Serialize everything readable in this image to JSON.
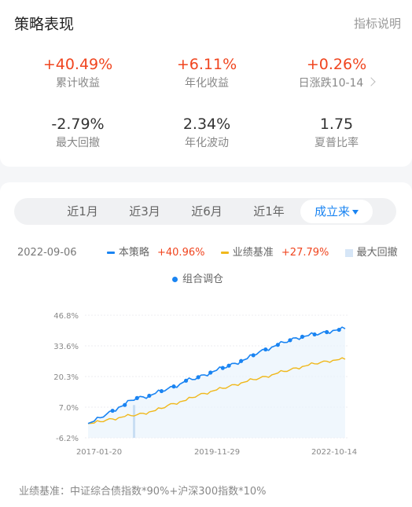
{
  "header": {
    "title": "策略表现",
    "help_link": "指标说明"
  },
  "metrics": [
    {
      "value": "+40.49%",
      "label": "累计收益"
    },
    {
      "value": "+6.11%",
      "label": "年化收益"
    },
    {
      "value": "+0.26%",
      "label": "日涨跌10-14"
    },
    {
      "value": "-2.79%",
      "label": "最大回撤"
    },
    {
      "value": "2.34%",
      "label": "年化波动"
    },
    {
      "value": "1.75",
      "label": "夏普比率"
    }
  ],
  "tabs": [
    "近1月",
    "近3月",
    "近6月",
    "近1年",
    "成立来"
  ],
  "active_tab": "成立来",
  "legend": {
    "date": "2022-09-06",
    "strategy_label": "本策略",
    "strategy_value": "+40.96%",
    "benchmark_label": "业绩基准",
    "benchmark_value": "+27.79%",
    "drawdown_label": "最大回撤",
    "rebalance_label": "组合调仓"
  },
  "colors": {
    "strategy": "#1a84f2",
    "benchmark": "#f0b81b",
    "drawdown": "#d6e6f7",
    "positive": "#f0451f"
  },
  "chart_data": {
    "type": "line",
    "y_ticks": [
      "46.8%",
      "33.6%",
      "20.3%",
      "7.0%",
      "-6.2%"
    ],
    "ylim": [
      -6.2,
      46.8
    ],
    "x_ticks": [
      "2017-01-20",
      "2019-11-29",
      "2022-10-14"
    ],
    "series": [
      {
        "name": "本策略",
        "values": [
          0,
          1,
          2.5,
          4,
          5.5,
          7,
          8,
          10,
          11,
          11.5,
          12,
          13,
          14,
          15,
          16,
          17,
          18.5,
          19,
          20,
          21,
          22,
          23,
          24,
          25,
          26,
          27,
          28,
          29.5,
          31,
          32,
          33,
          34,
          35,
          36,
          37,
          37.5,
          38,
          38.5,
          39,
          39.5,
          40.2,
          40.5,
          40.96
        ]
      },
      {
        "name": "业绩基准",
        "values": [
          0,
          0.2,
          0.8,
          1.5,
          2,
          2.5,
          3,
          3.4,
          3.8,
          4.4,
          5,
          5.6,
          6.5,
          7.8,
          8.6,
          9.4,
          10,
          11.2,
          12.2,
          13,
          13.8,
          14.5,
          15.2,
          16,
          16.8,
          17.5,
          18.2,
          19,
          19.6,
          20.3,
          21,
          21.8,
          22.5,
          23.2,
          24,
          24.6,
          25.2,
          25.8,
          26.4,
          26.9,
          27.3,
          27.6,
          27.79
        ]
      }
    ],
    "drawdown_marker_x": "2017-10",
    "rebalance_points_count": 20
  },
  "footer": {
    "benchmark_note": "业绩基准：中证综合债指数*90%+沪深300指数*10%"
  }
}
